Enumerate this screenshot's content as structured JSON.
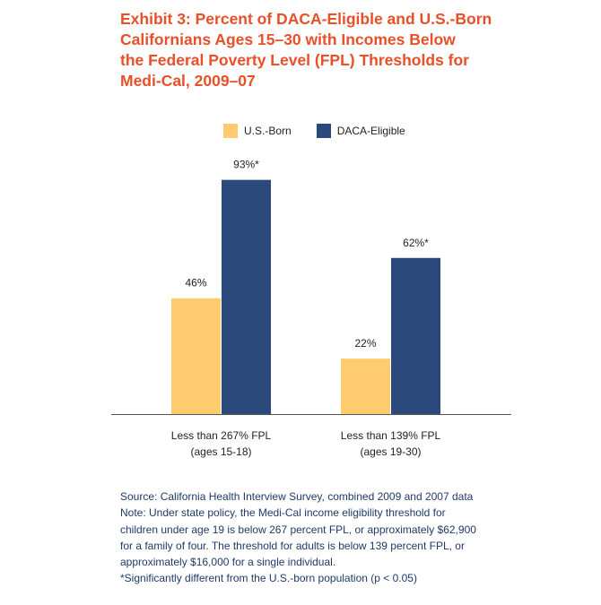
{
  "title_lines": [
    "Exhibit 3: Percent of DACA-Eligible and U.S.-Born",
    "Californians Ages 15–30 with Incomes Below",
    "the Federal Poverty Level (FPL) Thresholds for",
    "Medi-Cal, 2009–07"
  ],
  "colors": {
    "title": "#e8502a",
    "us_born": "#fecb6e",
    "daca": "#2b4a7b",
    "footer": "#1f3a68"
  },
  "chart_data": {
    "type": "bar",
    "title": "Exhibit 3: Percent of DACA-Eligible and U.S.-Born Californians Ages 15–30 with Incomes Below the Federal Poverty Level (FPL) Thresholds for Medi-Cal, 2009–07",
    "categories": [
      [
        "Less than 267% FPL",
        "(ages 15-18)"
      ],
      [
        "Less than 139% FPL",
        "(ages 19-30)"
      ]
    ],
    "series": [
      {
        "name": "U.S.-Born",
        "values": [
          46,
          22
        ],
        "labels": [
          "46%",
          "22%"
        ],
        "color": "#fecb6e"
      },
      {
        "name": "DACA-Eligible",
        "values": [
          93,
          62
        ],
        "labels": [
          "93%*",
          "62%*"
        ],
        "color": "#2b4a7b"
      }
    ],
    "ylim": [
      0,
      100
    ],
    "grid": false,
    "legend_position": "top-center",
    "xlabel": "",
    "ylabel": ""
  },
  "footer": {
    "lines": [
      "Source: California Health Interview Survey, combined 2009 and 2007 data",
      "Note: Under state policy, the Medi-Cal income eligibility threshold for",
      "children under age 19 is below 267 percent FPL, or approximately $62,900",
      "for a family of four. The threshold for adults is below 139 percent FPL, or",
      "approximately $16,000 for a single individual.",
      "*Significantly different from the U.S.-born population (p < 0.05)"
    ]
  }
}
